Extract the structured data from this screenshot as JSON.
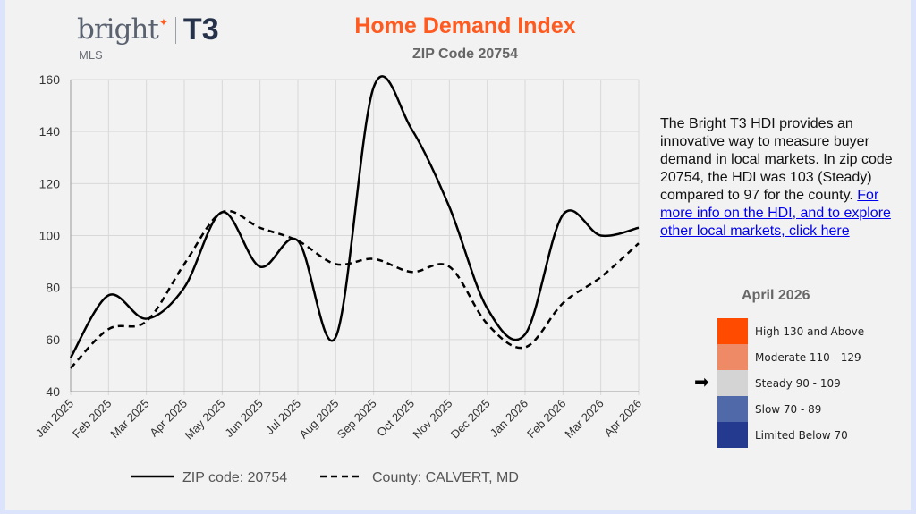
{
  "logo": {
    "brand": "bright",
    "sub": "MLS",
    "partner": "T3"
  },
  "header": {
    "title": "Home Demand Index",
    "subtitle": "ZIP Code 20754"
  },
  "description": {
    "text": "The Bright T3 HDI provides an innovative way to measure buyer demand in local markets. In zip code 20754, the HDI was 103 (Steady) compared to 97 for the county. ",
    "link": "For more info on the HDI, and to explore other local markets, click here"
  },
  "legend_scale": {
    "title": "April 2026",
    "current": "Steady 90 - 109",
    "items": [
      {
        "label": "High 130 and Above",
        "color": "#ff4b00"
      },
      {
        "label": "Moderate 110 - 129",
        "color": "#ee8a66"
      },
      {
        "label": "Steady 90 - 109",
        "color": "#d4d4d4"
      },
      {
        "label": "Slow 70 - 89",
        "color": "#5069a8"
      },
      {
        "label": "Limited Below 70",
        "color": "#243a8e"
      }
    ]
  },
  "chart_data": {
    "type": "line",
    "title": "Home Demand Index",
    "subtitle": "ZIP Code 20754",
    "x": [
      "Jan 2025",
      "Feb 2025",
      "Mar 2025",
      "Apr 2025",
      "May 2025",
      "Jun 2025",
      "Jul 2025",
      "Aug 2025",
      "Sep 2025",
      "Oct 2025",
      "Nov 2025",
      "Dec 2025",
      "Jan 2026",
      "Feb 2026",
      "Mar 2026",
      "Apr 2026"
    ],
    "ylim": [
      40,
      160
    ],
    "yticks": [
      40,
      60,
      80,
      100,
      120,
      140,
      160
    ],
    "grid": true,
    "legend": "bottom",
    "series": [
      {
        "name": "ZIP code: 20754",
        "style": "solid",
        "values": [
          53,
          77,
          68,
          80,
          109,
          88,
          98,
          61,
          157,
          141,
          111,
          72,
          62,
          108,
          100,
          103
        ]
      },
      {
        "name": "County: CALVERT, MD",
        "style": "dashed",
        "values": [
          49,
          64,
          67,
          89,
          109,
          103,
          98,
          89,
          91,
          86,
          88,
          66,
          57,
          74,
          84,
          97
        ]
      }
    ]
  }
}
